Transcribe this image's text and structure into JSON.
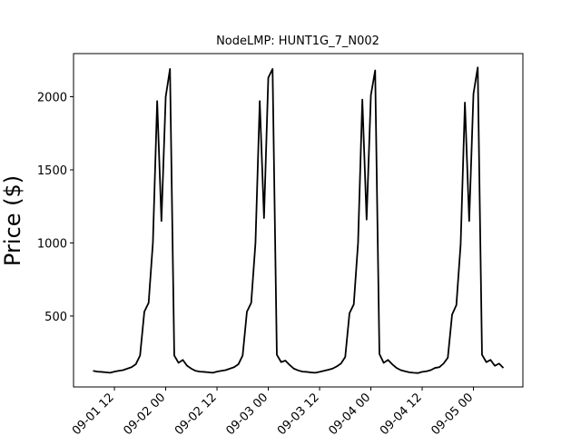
{
  "chart_data": {
    "type": "line",
    "title": "NodeLMP: HUNT1G_7_N002",
    "y_label": "Price ($)",
    "color": "#000000",
    "x": [
      "09-01 07",
      "09-01 08",
      "09-01 09",
      "09-01 10",
      "09-01 11",
      "09-01 12",
      "09-01 13",
      "09-01 14",
      "09-01 15",
      "09-01 16",
      "09-01 17",
      "09-01 18",
      "09-01 19",
      "09-01 20",
      "09-01 21",
      "09-01 22",
      "09-01 23",
      "09-02 00",
      "09-02 01",
      "09-02 02",
      "09-02 03",
      "09-02 04",
      "09-02 05",
      "09-02 06",
      "09-02 07",
      "09-02 08",
      "09-02 09",
      "09-02 10",
      "09-02 11",
      "09-02 12",
      "09-02 13",
      "09-02 14",
      "09-02 15",
      "09-02 16",
      "09-02 17",
      "09-02 18",
      "09-02 19",
      "09-02 20",
      "09-02 21",
      "09-02 22",
      "09-02 23",
      "09-03 00",
      "09-03 01",
      "09-03 02",
      "09-03 03",
      "09-03 04",
      "09-03 05",
      "09-03 06",
      "09-03 07",
      "09-03 08",
      "09-03 09",
      "09-03 10",
      "09-03 11",
      "09-03 12",
      "09-03 13",
      "09-03 14",
      "09-03 15",
      "09-03 16",
      "09-03 17",
      "09-03 18",
      "09-03 19",
      "09-03 20",
      "09-03 21",
      "09-03 22",
      "09-03 23",
      "09-04 00",
      "09-04 01",
      "09-04 02",
      "09-04 03",
      "09-04 04",
      "09-04 05",
      "09-04 06",
      "09-04 07",
      "09-04 08",
      "09-04 09",
      "09-04 10",
      "09-04 11",
      "09-04 12",
      "09-04 13",
      "09-04 14",
      "09-04 15",
      "09-04 16",
      "09-04 17",
      "09-04 18",
      "09-04 19",
      "09-04 20",
      "09-04 21",
      "09-04 22",
      "09-04 23",
      "09-05 00",
      "09-05 01",
      "09-05 02",
      "09-05 03",
      "09-05 04",
      "09-05 05",
      "09-05 06",
      "09-05 07"
    ],
    "values": [
      125,
      120,
      118,
      115,
      112,
      120,
      125,
      130,
      140,
      150,
      170,
      230,
      530,
      590,
      1000,
      1970,
      1150,
      2000,
      2190,
      230,
      180,
      200,
      160,
      140,
      125,
      120,
      118,
      115,
      112,
      120,
      125,
      130,
      140,
      150,
      170,
      230,
      530,
      590,
      1000,
      1970,
      1170,
      2130,
      2190,
      235,
      185,
      195,
      165,
      140,
      128,
      120,
      118,
      114,
      112,
      118,
      125,
      132,
      140,
      155,
      175,
      220,
      520,
      580,
      1000,
      1980,
      1160,
      2010,
      2180,
      240,
      180,
      200,
      170,
      145,
      130,
      122,
      115,
      112,
      110,
      118,
      122,
      130,
      145,
      150,
      175,
      215,
      510,
      575,
      990,
      1960,
      1150,
      2020,
      2200,
      235,
      185,
      200,
      160,
      175,
      145
    ],
    "ylim": [
      15,
      2295
    ],
    "yticks": [
      500,
      1000,
      1500,
      2000
    ],
    "xticks": [
      "09-01 12",
      "09-02 00",
      "09-02 12",
      "09-03 00",
      "09-03 12",
      "09-04 00",
      "09-04 12",
      "09-05 00"
    ]
  }
}
